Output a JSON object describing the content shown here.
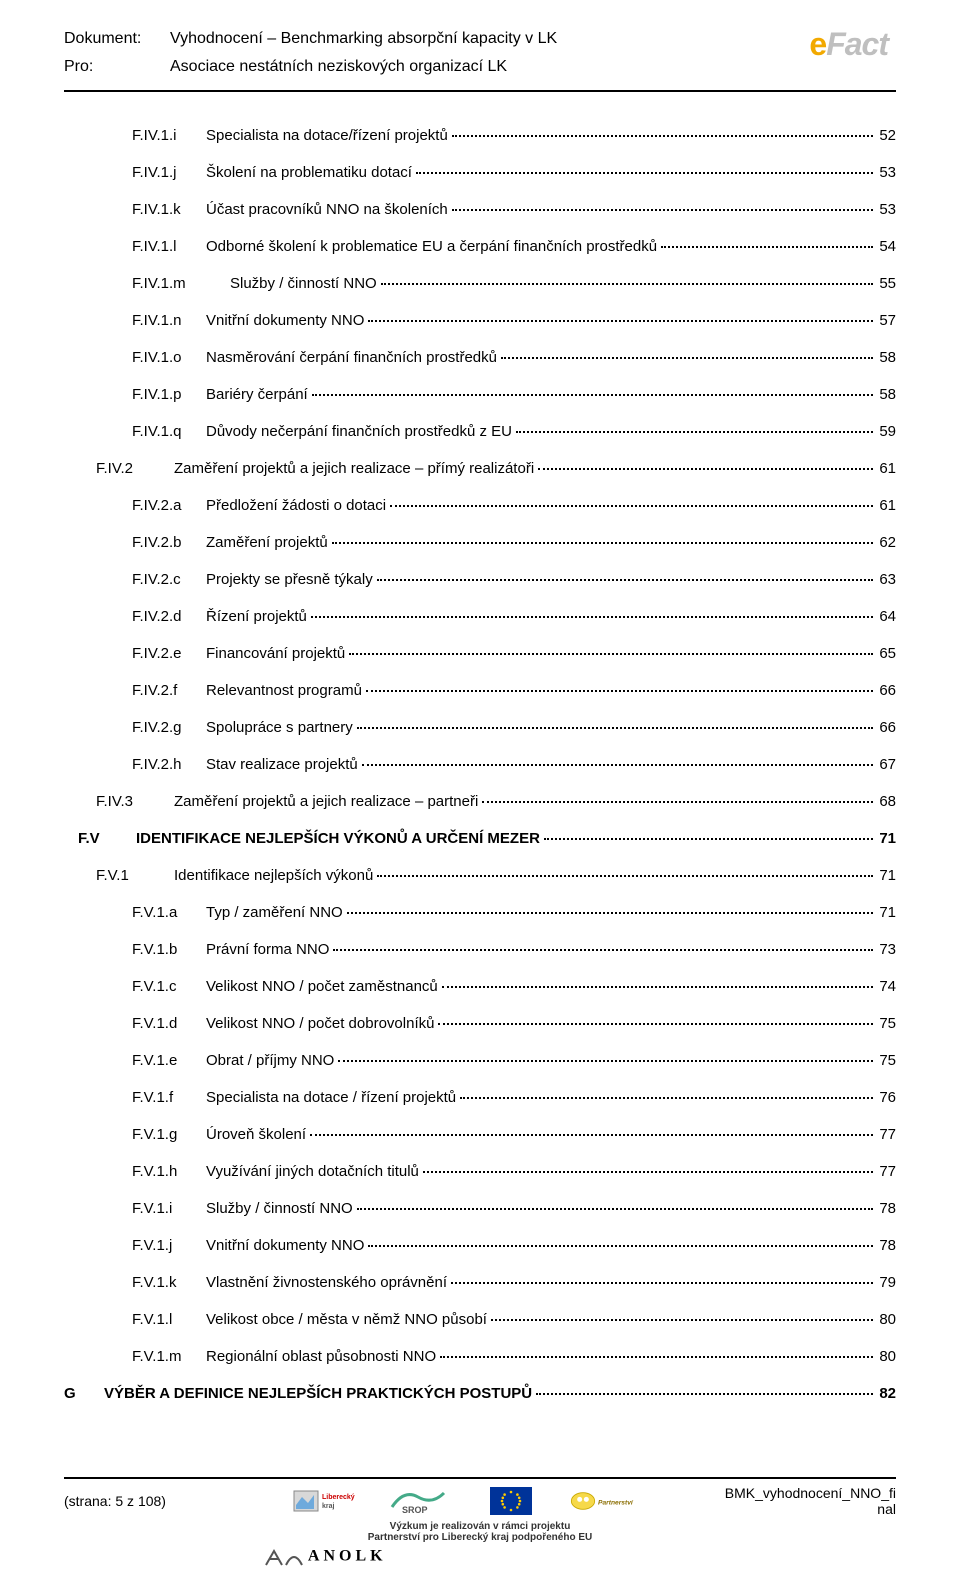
{
  "header": {
    "dokument_label": "Dokument:",
    "dokument_value": "Vyhodnocení – Benchmarking absorpční kapacity v LK",
    "pro_label": "Pro:",
    "pro_value": "Asociace nestátních neziskových organizací LK",
    "logo_e": "e",
    "logo_rest": "Fact"
  },
  "toc": [
    {
      "lvl": 4,
      "key": "F.IV.1.i",
      "title": "Specialista na dotace/řízení projektů",
      "page": "52"
    },
    {
      "lvl": 4,
      "key": "F.IV.1.j",
      "title": "Školení na problematiku dotací",
      "page": "53"
    },
    {
      "lvl": 4,
      "key": "F.IV.1.k",
      "title": "Účast pracovníků NNO na školeních",
      "page": "53"
    },
    {
      "lvl": 4,
      "key": "F.IV.1.l",
      "title": "Odborné školení k problematice EU a čerpání finančních prostředků",
      "page": "54"
    },
    {
      "lvl": 4,
      "key": "F.IV.1.m",
      "title": "Služby / činností NNO",
      "page": "55",
      "indent_title": true
    },
    {
      "lvl": 4,
      "key": "F.IV.1.n",
      "title": "Vnitřní dokumenty NNO",
      "page": "57"
    },
    {
      "lvl": 4,
      "key": "F.IV.1.o",
      "title": "Nasměrování čerpání finančních prostředků",
      "page": "58"
    },
    {
      "lvl": 4,
      "key": "F.IV.1.p",
      "title": "Bariéry čerpání",
      "page": "58"
    },
    {
      "lvl": 4,
      "key": "F.IV.1.q",
      "title": "Důvody nečerpání finančních prostředků z EU",
      "page": "59"
    },
    {
      "lvl": 3,
      "key": "F.IV.2",
      "title": "Zaměření projektů a jejich realizace – přímý realizátoři",
      "page": "61"
    },
    {
      "lvl": 4,
      "key": "F.IV.2.a",
      "title": "Předložení žádosti o dotaci",
      "page": "61"
    },
    {
      "lvl": 4,
      "key": "F.IV.2.b",
      "title": "Zaměření projektů",
      "page": "62"
    },
    {
      "lvl": 4,
      "key": "F.IV.2.c",
      "title": "Projekty  se přesně týkaly",
      "page": "63"
    },
    {
      "lvl": 4,
      "key": "F.IV.2.d",
      "title": "Řízení projektů",
      "page": "64"
    },
    {
      "lvl": 4,
      "key": "F.IV.2.e",
      "title": "Financování projektů",
      "page": "65"
    },
    {
      "lvl": 4,
      "key": "F.IV.2.f",
      "title": "Relevantnost programů",
      "page": "66"
    },
    {
      "lvl": 4,
      "key": "F.IV.2.g",
      "title": "Spolupráce s partnery",
      "page": "66"
    },
    {
      "lvl": 4,
      "key": "F.IV.2.h",
      "title": "Stav realizace projektů",
      "page": "67"
    },
    {
      "lvl": 3,
      "key": "F.IV.3",
      "title": "Zaměření projektů a jejich realizace – partneři",
      "page": "68"
    },
    {
      "lvl": 2,
      "key": "F.V",
      "title": "IDENTIFIKACE NEJLEPŠÍCH VÝKONŮ A URČENÍ MEZER",
      "page": "71",
      "bold": true
    },
    {
      "lvl": 3,
      "key": "F.V.1",
      "title": "Identifikace nejlepších výkonů",
      "page": "71"
    },
    {
      "lvl": 4,
      "key": "F.V.1.a",
      "title": "Typ / zaměření NNO",
      "page": "71"
    },
    {
      "lvl": 4,
      "key": "F.V.1.b",
      "title": "Právní forma NNO",
      "page": "73"
    },
    {
      "lvl": 4,
      "key": "F.V.1.c",
      "title": "Velikost NNO / počet zaměstnanců",
      "page": "74"
    },
    {
      "lvl": 4,
      "key": "F.V.1.d",
      "title": "Velikost NNO / počet dobrovolníků",
      "page": "75"
    },
    {
      "lvl": 4,
      "key": "F.V.1.e",
      "title": "Obrat / příjmy NNO",
      "page": "75"
    },
    {
      "lvl": 4,
      "key": "F.V.1.f",
      "title": "Specialista na dotace / řízení projektů",
      "page": "76"
    },
    {
      "lvl": 4,
      "key": "F.V.1.g",
      "title": "Úroveň školení",
      "page": "77"
    },
    {
      "lvl": 4,
      "key": "F.V.1.h",
      "title": "Využívání jiných dotačních titulů",
      "page": "77"
    },
    {
      "lvl": 4,
      "key": "F.V.1.i",
      "title": "Služby / činností NNO",
      "page": "78"
    },
    {
      "lvl": 4,
      "key": "F.V.1.j",
      "title": "Vnitřní dokumenty NNO",
      "page": "78"
    },
    {
      "lvl": 4,
      "key": "F.V.1.k",
      "title": "Vlastnění živnostenského oprávnění",
      "page": "79"
    },
    {
      "lvl": 4,
      "key": "F.V.1.l",
      "title": "Velikost obce / města v němž NNO působí",
      "page": "80"
    },
    {
      "lvl": 4,
      "key": "F.V.1.m",
      "title": "Regionální oblast působnosti NNO",
      "page": "80"
    },
    {
      "lvl": 1,
      "key": "G",
      "title": "VÝBĚR A DEFINICE NEJLEPŠÍCH PRAKTICKÝCH POSTUPŮ",
      "page": "82",
      "bold": true
    }
  ],
  "footer": {
    "page_info_prefix": "(strana:  ",
    "page_current": "5",
    "page_info_mid": "  z ",
    "page_total": "108",
    "page_info_suffix": ")",
    "right_line1": "BMK_vyhodnocení_NNO_fi",
    "right_line2": "nal",
    "caption_line1": "Výzkum je realizován v rámci projektu",
    "caption_line2": "Partnerství pro Liberecký kraj podpořeného EU",
    "anolk": "ANOLK",
    "logo_labels": [
      "Liberecký kraj",
      "SROP",
      "EU",
      "Partnerství"
    ]
  }
}
